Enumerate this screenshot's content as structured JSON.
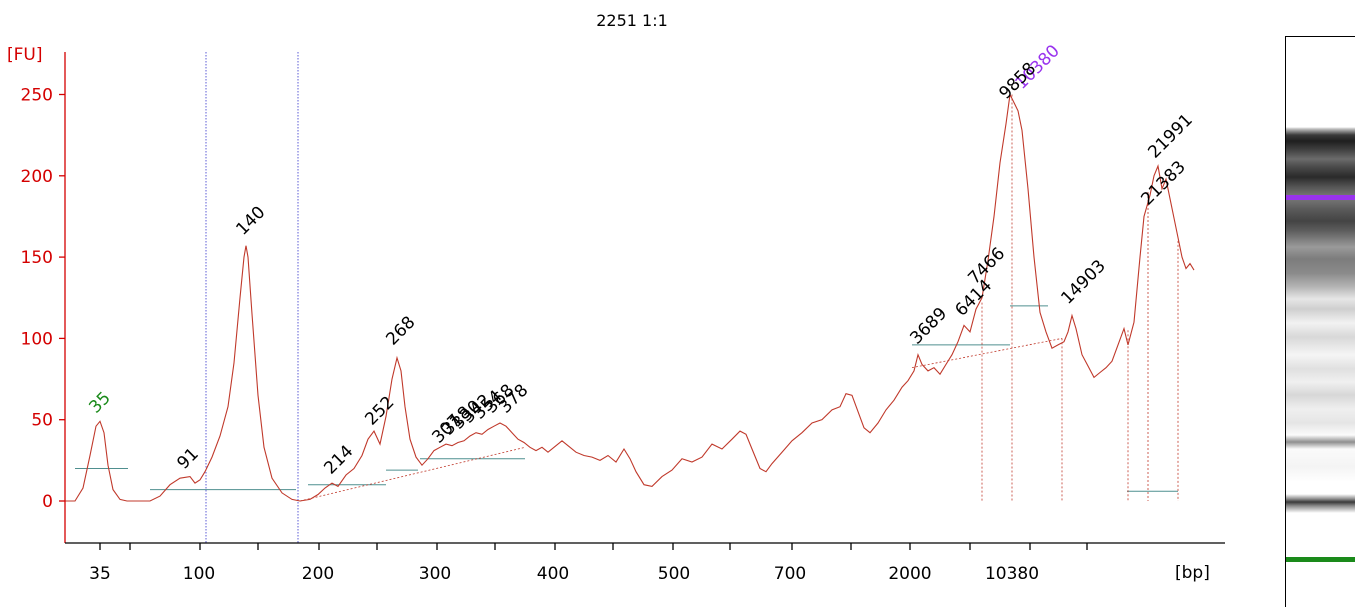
{
  "chart_data": {
    "type": "line",
    "title": "2251 1:1",
    "ylabel": "[FU]",
    "xlabel": "[bp]",
    "ylim": [
      -25,
      270
    ],
    "y_ticks": [
      0,
      50,
      100,
      150,
      200,
      250
    ],
    "x_axis": "nonlinear (electrophoresis migration), tick labels in bp",
    "x_tick_labels": [
      "35",
      "100",
      "200",
      "300",
      "400",
      "500",
      "700",
      "2000",
      "10380"
    ],
    "x_unlabeled_ticks": 9,
    "colors": {
      "trace": "#c0392b",
      "axis": "#d40000",
      "lower_marker": "#1a8a1a",
      "upper_marker": "#9933ee",
      "baseline": "#4f8f8f",
      "region_line": "#3333cc"
    },
    "markers": [
      {
        "label": "35",
        "role": "lower marker",
        "fu": 49
      },
      {
        "label": "10380",
        "role": "upper marker",
        "fu": 262
      }
    ],
    "peaks": [
      {
        "label": "91",
        "fu": 15
      },
      {
        "label": "140",
        "fu": 157
      },
      {
        "label": "214",
        "fu": 12
      },
      {
        "label": "252",
        "fu": 42
      },
      {
        "label": "268",
        "fu": 88
      },
      {
        "label": "307",
        "fu": 32
      },
      {
        "label": "318",
        "fu": 35
      },
      {
        "label": "330",
        "fu": 38
      },
      {
        "label": "342",
        "fu": 41
      },
      {
        "label": "354",
        "fu": 44
      },
      {
        "label": "368",
        "fu": 47
      },
      {
        "label": "378",
        "fu": 45
      },
      {
        "label": "3689",
        "fu": 93
      },
      {
        "label": "6414",
        "fu": 110
      },
      {
        "label": "7466",
        "fu": 123
      },
      {
        "label": "9858",
        "fu": 250
      },
      {
        "label": "14903",
        "fu": 114
      },
      {
        "label": "21383",
        "fu": 188
      },
      {
        "label": "21991",
        "fu": 206
      }
    ],
    "region_boundaries": 2,
    "grid": false,
    "legend": "none"
  }
}
